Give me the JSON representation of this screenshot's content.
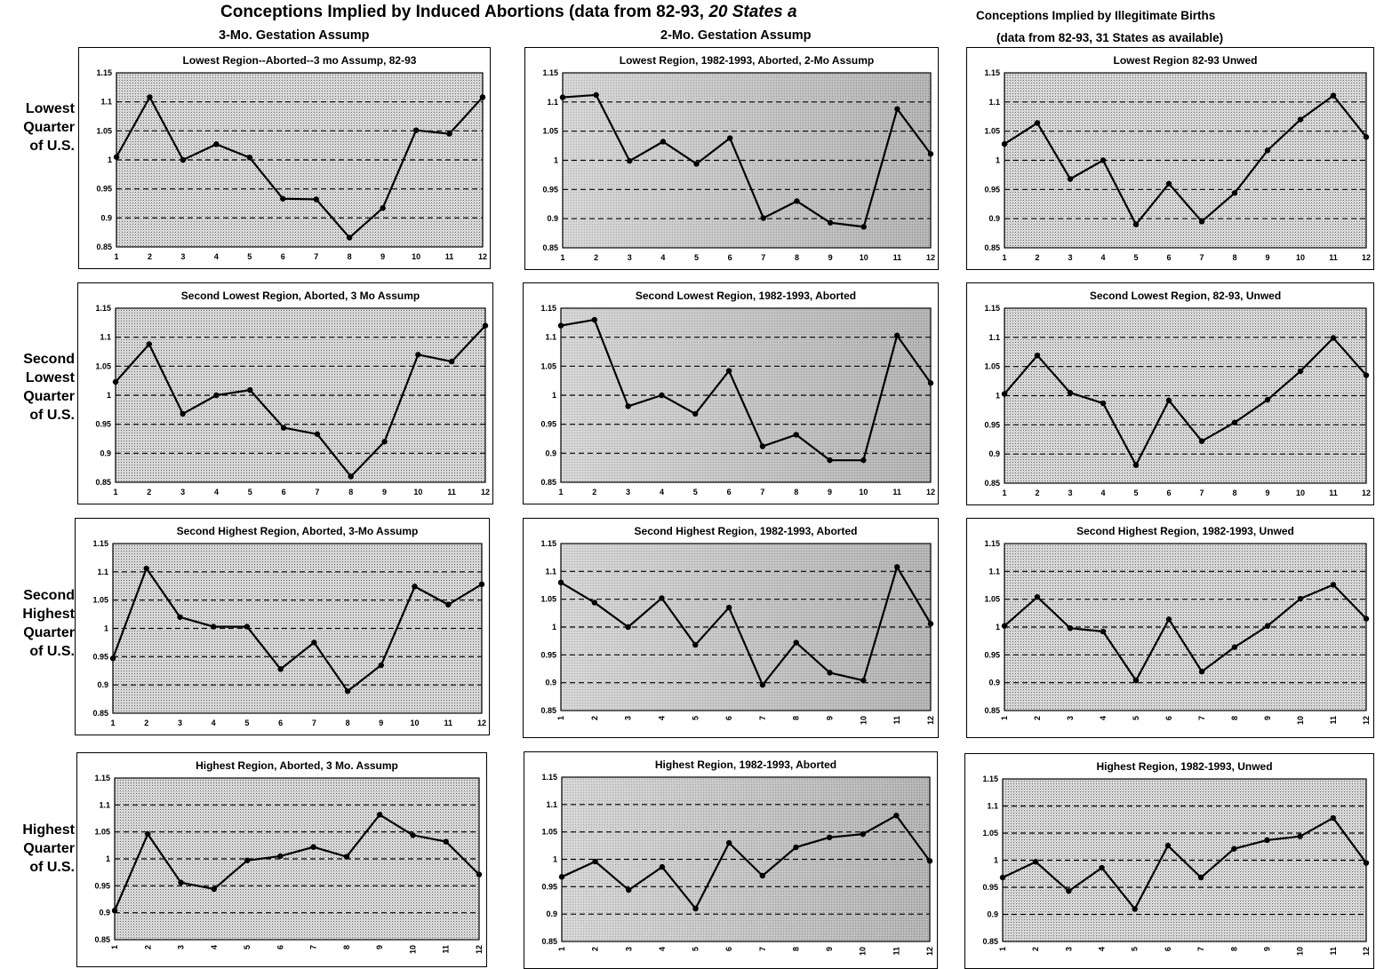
{
  "header": {
    "title_main": "Conceptions Implied by Induced Abortions (data from 82-93, ",
    "title_italic": "20 States a",
    "sub_3mo": "3-Mo. Gestation Assump",
    "sub_2mo": "2-Mo. Gestation Assump",
    "right_title": "Conceptions Implied by Illegitimate Births",
    "right_sub": "(data from 82-93, 31 States as available)"
  },
  "rows": [
    {
      "lines": [
        "Lowest",
        "Quarter",
        "of U.S."
      ]
    },
    {
      "lines": [
        "Second",
        "Lowest",
        "Quarter",
        "of U.S."
      ]
    },
    {
      "lines": [
        "Second",
        "Highest",
        "Quarter",
        "of U.S."
      ]
    },
    {
      "lines": [
        "Highest",
        "Quarter",
        "of U.S."
      ]
    }
  ],
  "colors": {
    "plot_light": "#d6d6d6",
    "plot_dark": "#9e9e9e",
    "line": "#000000",
    "grid": "#000000"
  },
  "chart_data": [
    {
      "type": "line",
      "title": "Lowest Region--Aborted--3 mo Assump, 82-93",
      "categories": [
        "1",
        "2",
        "3",
        "4",
        "5",
        "6",
        "7",
        "8",
        "9",
        "10",
        "11",
        "12"
      ],
      "series": [
        {
          "values": [
            1.005,
            1.108,
            1.0,
            1.027,
            1.004,
            0.933,
            0.932,
            0.866,
            0.917,
            1.051,
            1.045,
            1.108
          ]
        }
      ],
      "ylim": [
        0.85,
        1.15
      ],
      "yticks": [
        "0.85",
        "0.9",
        "0.95",
        "1",
        "1.05",
        "1.1",
        "1.15"
      ],
      "grid": true
    },
    {
      "type": "line",
      "title": "Lowest Region, 1982-1993, Aborted, 2-Mo Assump",
      "categories": [
        "1",
        "2",
        "3",
        "4",
        "5",
        "6",
        "7",
        "8",
        "9",
        "10",
        "11",
        "12"
      ],
      "series": [
        {
          "values": [
            1.108,
            1.112,
            0.999,
            1.032,
            0.994,
            1.038,
            0.901,
            0.93,
            0.893,
            0.886,
            1.088,
            1.011
          ]
        }
      ],
      "ylim": [
        0.85,
        1.15
      ],
      "yticks": [
        "0.85",
        "0.9",
        "0.95",
        "1",
        "1.05",
        "1.1",
        "1.15"
      ],
      "grid": true
    },
    {
      "type": "line",
      "title": "Lowest Region 82-93 Unwed",
      "categories": [
        "1",
        "2",
        "3",
        "4",
        "5",
        "6",
        "7",
        "8",
        "9",
        "10",
        "11",
        "12"
      ],
      "series": [
        {
          "values": [
            1.028,
            1.064,
            0.968,
            1.0,
            0.89,
            0.96,
            0.895,
            0.944,
            1.017,
            1.07,
            1.111,
            1.04
          ]
        }
      ],
      "ylim": [
        0.85,
        1.15
      ],
      "yticks": [
        "0.85",
        "0.9",
        "0.95",
        "1",
        "1.05",
        "1.1",
        "1.15"
      ],
      "grid": true
    },
    {
      "type": "line",
      "title": "Second Lowest Region, Aborted, 3 Mo Assump",
      "categories": [
        "1",
        "2",
        "3",
        "4",
        "5",
        "6",
        "7",
        "8",
        "9",
        "10",
        "11",
        "12"
      ],
      "series": [
        {
          "values": [
            1.023,
            1.088,
            0.968,
            1.0,
            1.009,
            0.944,
            0.933,
            0.86,
            0.92,
            1.07,
            1.058,
            1.12
          ]
        }
      ],
      "ylim": [
        0.85,
        1.15
      ],
      "yticks": [
        "0.85",
        "0.9",
        "0.95",
        "1",
        "1.05",
        "1.1",
        "1.15"
      ],
      "grid": true
    },
    {
      "type": "line",
      "title": "Second Lowest Region, 1982-1993, Aborted",
      "categories": [
        "1",
        "2",
        "3",
        "4",
        "5",
        "6",
        "7",
        "8",
        "9",
        "10",
        "11",
        "12"
      ],
      "series": [
        {
          "values": [
            1.12,
            1.13,
            0.981,
            1.0,
            0.968,
            1.042,
            0.912,
            0.932,
            0.888,
            0.888,
            1.103,
            1.021
          ]
        }
      ],
      "ylim": [
        0.85,
        1.15
      ],
      "yticks": [
        "0.85",
        "0.9",
        "0.95",
        "1",
        "1.05",
        "1.1",
        "1.15"
      ],
      "grid": true
    },
    {
      "type": "line",
      "title": "Second Lowest Region, 82-93, Unwed",
      "categories": [
        "1",
        "2",
        "3",
        "4",
        "5",
        "6",
        "7",
        "8",
        "9",
        "10",
        "11",
        "12"
      ],
      "series": [
        {
          "values": [
            1.003,
            1.069,
            1.005,
            0.987,
            0.881,
            0.992,
            0.922,
            0.954,
            0.993,
            1.042,
            1.099,
            1.035
          ]
        }
      ],
      "ylim": [
        0.85,
        1.15
      ],
      "yticks": [
        "0.85",
        "0.9",
        "0.95",
        "1",
        "1.05",
        "1.1",
        "1.15"
      ],
      "grid": true
    },
    {
      "type": "line",
      "title": "Second Highest Region, Aborted, 3-Mo Assump",
      "categories": [
        "1",
        "2",
        "3",
        "4",
        "5",
        "6",
        "7",
        "8",
        "9",
        "10",
        "11",
        "12"
      ],
      "series": [
        {
          "values": [
            0.947,
            1.106,
            1.02,
            1.003,
            1.003,
            0.928,
            0.975,
            0.889,
            0.935,
            1.074,
            1.042,
            1.078
          ]
        }
      ],
      "ylim": [
        0.85,
        1.15
      ],
      "yticks": [
        "0.85",
        "0.9",
        "0.95",
        "1",
        "1.05",
        "1.1",
        "1.15"
      ],
      "grid": true
    },
    {
      "type": "line",
      "title": "Second Highest Region, 1982-1993, Aborted",
      "categories": [
        "1",
        "2",
        "3",
        "4",
        "5",
        "6",
        "7",
        "8",
        "9",
        "10",
        "11",
        "12"
      ],
      "series": [
        {
          "values": [
            1.08,
            1.044,
            1.0,
            1.052,
            0.968,
            1.035,
            0.896,
            0.972,
            0.918,
            0.904,
            1.108,
            1.006
          ]
        }
      ],
      "ylim": [
        0.85,
        1.15
      ],
      "yticks": [
        "0.85",
        "0.9",
        "0.95",
        "1",
        "1.05",
        "1.1",
        "1.15"
      ],
      "grid": true
    },
    {
      "type": "line",
      "title": "Second Highest Region, 1982-1993, Unwed",
      "categories": [
        "1",
        "2",
        "3",
        "4",
        "5",
        "6",
        "7",
        "8",
        "9",
        "10",
        "11",
        "12"
      ],
      "series": [
        {
          "values": [
            1.002,
            1.054,
            0.998,
            0.992,
            0.904,
            1.014,
            0.92,
            0.964,
            1.002,
            1.051,
            1.076,
            1.015
          ]
        }
      ],
      "ylim": [
        0.85,
        1.15
      ],
      "yticks": [
        "0.85",
        "0.9",
        "0.95",
        "1",
        "1.05",
        "1.1",
        "1.15"
      ],
      "grid": true
    },
    {
      "type": "line",
      "title": "Highest Region, Aborted, 3 Mo. Assump",
      "categories": [
        "1",
        "2",
        "3",
        "4",
        "5",
        "6",
        "7",
        "8",
        "9",
        "10",
        "11",
        "12"
      ],
      "series": [
        {
          "values": [
            0.904,
            1.046,
            0.956,
            0.944,
            0.997,
            1.005,
            1.022,
            1.004,
            1.082,
            1.044,
            1.032,
            0.971
          ]
        }
      ],
      "ylim": [
        0.85,
        1.15
      ],
      "yticks": [
        "0.85",
        "0.9",
        "0.95",
        "1",
        "1.05",
        "1.1",
        "1.15"
      ],
      "grid": true
    },
    {
      "type": "line",
      "title": "Highest Region, 1982-1993, Aborted",
      "categories": [
        "1",
        "2",
        "3",
        "4",
        "5",
        "6",
        "7",
        "8",
        "9",
        "10",
        "11",
        "12"
      ],
      "series": [
        {
          "values": [
            0.968,
            0.996,
            0.944,
            0.986,
            0.91,
            1.03,
            0.97,
            1.022,
            1.04,
            1.046,
            1.08,
            0.997
          ]
        }
      ],
      "ylim": [
        0.85,
        1.15
      ],
      "yticks": [
        "0.85",
        "0.9",
        "0.95",
        "1",
        "1.05",
        "1.1",
        "1.15"
      ],
      "grid": true
    },
    {
      "type": "line",
      "title": "Highest Region, 1982-1993, Unwed",
      "categories": [
        "1",
        "2",
        "3",
        "4",
        "5",
        "6",
        "7",
        "8",
        "9",
        "10",
        "11",
        "12"
      ],
      "series": [
        {
          "values": [
            0.968,
            0.997,
            0.943,
            0.986,
            0.91,
            1.027,
            0.968,
            1.021,
            1.037,
            1.044,
            1.078,
            0.995
          ]
        }
      ],
      "ylim": [
        0.85,
        1.15
      ],
      "yticks": [
        "0.85",
        "0.9",
        "0.95",
        "1",
        "1.05",
        "1.1",
        "1.15"
      ],
      "grid": true
    }
  ]
}
